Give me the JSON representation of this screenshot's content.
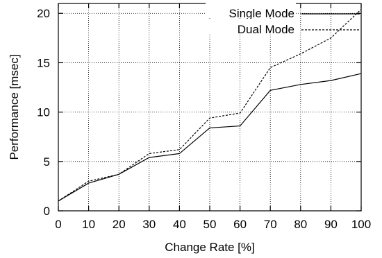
{
  "chart_data": {
    "type": "line",
    "title": "",
    "xlabel": "Change Rate [%]",
    "ylabel": "Performance [msec]",
    "xlim": [
      0,
      100
    ],
    "ylim": [
      0,
      21
    ],
    "x_ticks": [
      0,
      10,
      20,
      30,
      40,
      50,
      60,
      70,
      80,
      90,
      100
    ],
    "y_ticks": [
      0,
      5,
      10,
      15,
      20
    ],
    "grid": true,
    "legend": "top-right",
    "x": [
      0,
      10,
      20,
      30,
      40,
      50,
      60,
      70,
      80,
      90,
      100
    ],
    "series": [
      {
        "name": "Single Mode",
        "style": "solid",
        "values": [
          1.0,
          2.8,
          3.7,
          5.4,
          5.8,
          8.4,
          8.6,
          12.2,
          12.8,
          13.2,
          13.9
        ]
      },
      {
        "name": "Dual Mode",
        "style": "dashed",
        "values": [
          1.0,
          3.0,
          3.7,
          5.8,
          6.2,
          9.4,
          9.9,
          14.5,
          15.9,
          17.5,
          20.4
        ]
      }
    ]
  }
}
